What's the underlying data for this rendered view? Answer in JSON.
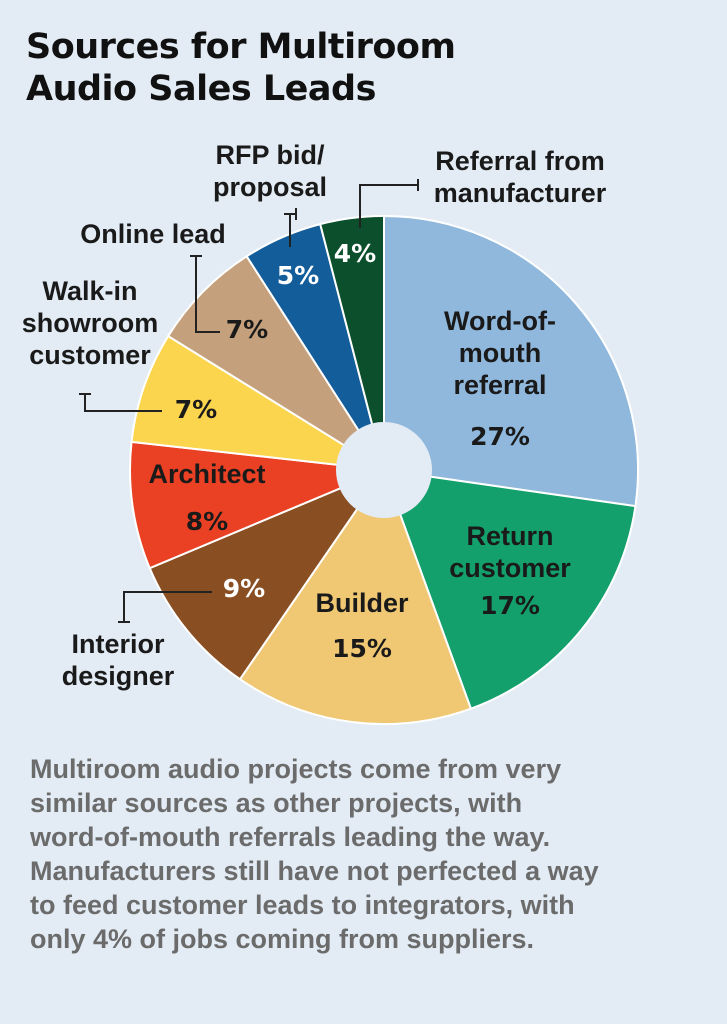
{
  "title_lines": [
    "Sources for Multiroom",
    "Audio Sales Leads"
  ],
  "caption_lines": [
    "Multiroom audio projects come from very",
    "similar sources as other projects, with",
    "word-of-mouth referrals leading the way.",
    "Manufacturers still have not perfected a way",
    "to feed customer leads to integrators, with",
    "only 4% of jobs coming from suppliers."
  ],
  "chart_data": {
    "type": "pie",
    "title": "Sources for Multiroom Audio Sales Leads",
    "donut": true,
    "slices": [
      {
        "label": "Word-of-mouth referral",
        "label_lines": [
          "Word-of-",
          "mouth",
          "referral"
        ],
        "value": 27,
        "pct_text": "27%",
        "color": "#8fb8dc",
        "text_color": "#1a1a1a"
      },
      {
        "label": "Return customer",
        "label_lines": [
          "Return",
          "customer"
        ],
        "value": 17,
        "pct_text": "17%",
        "color": "#13a06c",
        "text_color": "#1a1a1a"
      },
      {
        "label": "Builder",
        "label_lines": [
          "Builder"
        ],
        "value": 15,
        "pct_text": "15%",
        "color": "#f0c874",
        "text_color": "#1a1a1a"
      },
      {
        "label": "Interior designer",
        "label_lines": [
          "Interior",
          "designer"
        ],
        "value": 9,
        "pct_text": "9%",
        "color": "#8a4e23",
        "text_color": "#ffffff"
      },
      {
        "label": "Architect",
        "label_lines": [
          "Architect"
        ],
        "value": 8,
        "pct_text": "8%",
        "color": "#ea4124",
        "text_color": "#1a1a1a"
      },
      {
        "label": "Walk-in showroom customer",
        "label_lines": [
          "Walk-in",
          "showroom",
          "customer"
        ],
        "value": 7,
        "pct_text": "7%",
        "color": "#fcd54e",
        "text_color": "#1a1a1a"
      },
      {
        "label": "Online lead",
        "label_lines": [
          "Online lead"
        ],
        "value": 7,
        "pct_text": "7%",
        "color": "#c4a07c",
        "text_color": "#1a1a1a"
      },
      {
        "label": "RFP bid/ proposal",
        "label_lines": [
          "RFP bid/",
          "proposal"
        ],
        "value": 5,
        "pct_text": "5%",
        "color": "#145d9b",
        "text_color": "#ffffff"
      },
      {
        "label": "Referral from manufacturer",
        "label_lines": [
          "Referral from",
          "manufacturer"
        ],
        "value": 4,
        "pct_text": "4%",
        "color": "#0b4f2c",
        "text_color": "#ffffff"
      }
    ]
  }
}
